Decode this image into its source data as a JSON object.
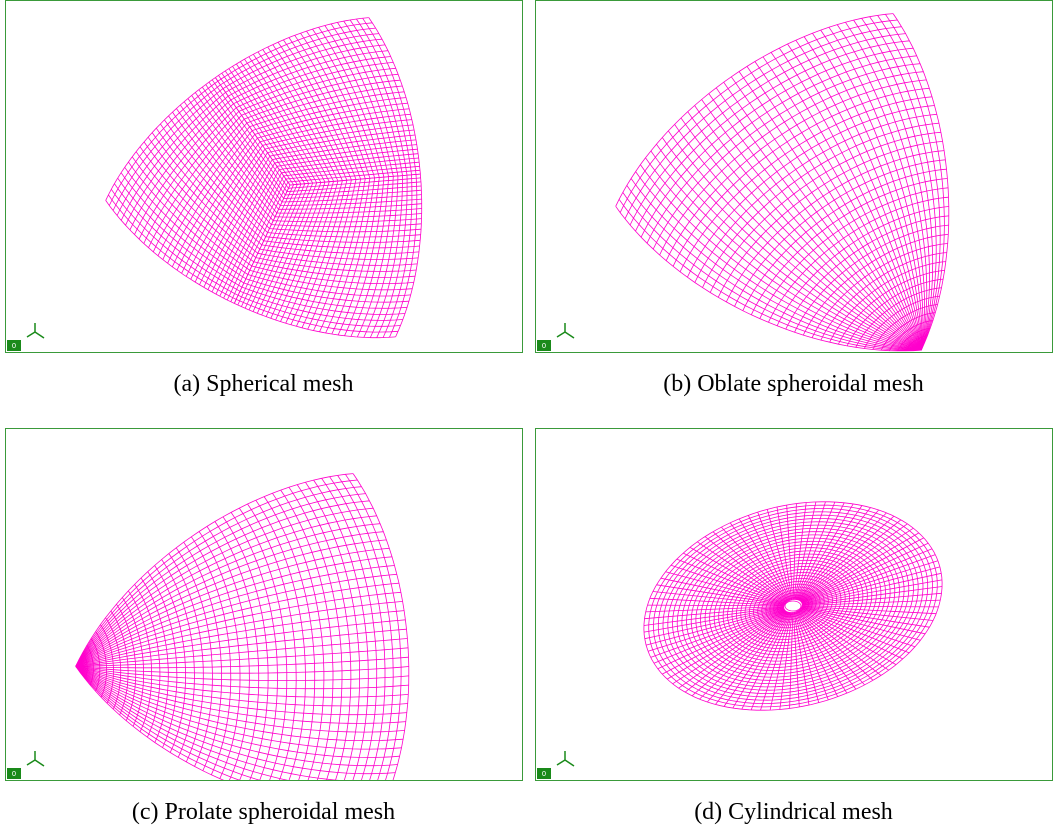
{
  "panels": [
    {
      "caption": "(a) Spherical mesh",
      "badge": "0"
    },
    {
      "caption": "(b) Oblate spheroidal mesh",
      "badge": "0"
    },
    {
      "caption": "(c) Prolate spheroidal mesh",
      "badge": "0"
    },
    {
      "caption": "(d) Cylindrical mesh",
      "badge": "0"
    }
  ]
}
